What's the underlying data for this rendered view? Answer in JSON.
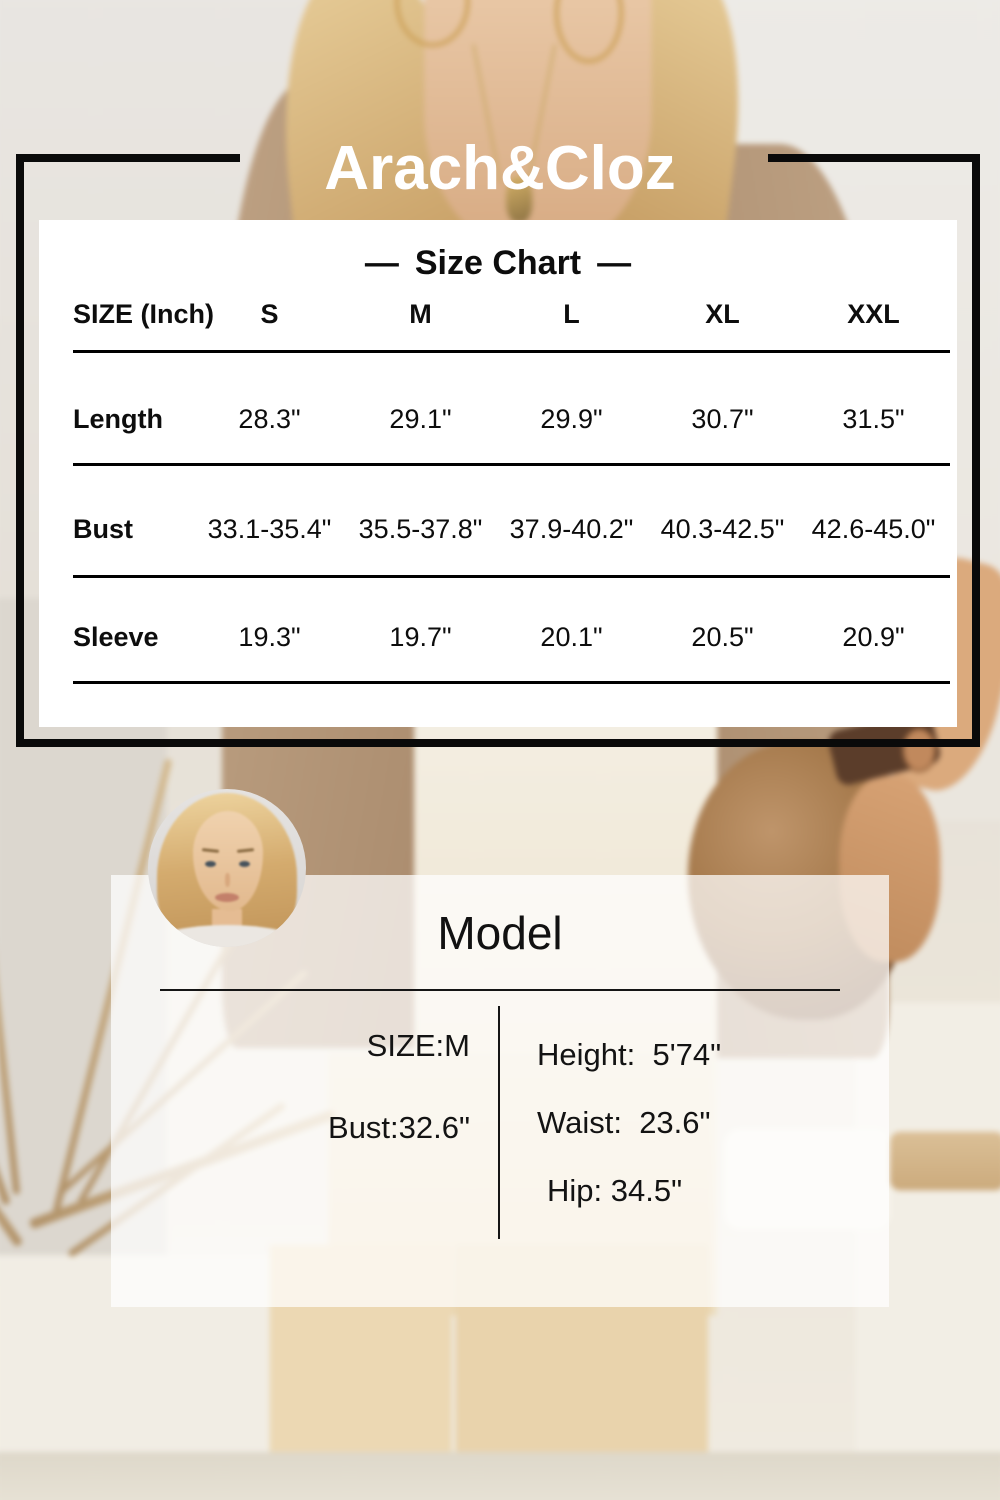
{
  "brand": {
    "name": "Arach&Cloz"
  },
  "size_chart": {
    "title": "Size Chart",
    "dash_left": "—",
    "dash_right": "—",
    "header": {
      "size_label": "SIZE (Inch)",
      "sizes": [
        "S",
        "M",
        "L",
        "XL",
        "XXL"
      ]
    },
    "rows": [
      {
        "label": "Length",
        "values": [
          "28.3\"",
          "29.1\"",
          "29.9\"",
          "30.7\"",
          "31.5\""
        ]
      },
      {
        "label": "Bust",
        "values": [
          "33.1-35.4\"",
          "35.5-37.8\"",
          "37.9-40.2\"",
          "40.3-42.5\"",
          "42.6-45.0\""
        ]
      },
      {
        "label": "Sleeve",
        "values": [
          "19.3\"",
          "19.7\"",
          "20.1\"",
          "20.5\"",
          "20.9\""
        ]
      }
    ]
  },
  "model_info": {
    "title": "Model",
    "size": "SIZE:M",
    "bust": "Bust:32.6\"",
    "height": "Height:  5'74\"",
    "waist": "Waist:  23.6\"",
    "hip": "Hip: 34.5\""
  },
  "colors": {
    "frame_black": "#0a0a0a",
    "card_white": "#ffffff",
    "overlay_white": "rgba(255,255,255,0.72)",
    "text": "#0d0d0d",
    "brand_text": "#ffffff"
  },
  "chart_data": {
    "type": "table",
    "title": "Size Chart",
    "unit": "Inch",
    "columns": [
      "SIZE (Inch)",
      "S",
      "M",
      "L",
      "XL",
      "XXL"
    ],
    "rows": [
      [
        "Length",
        "28.3\"",
        "29.1\"",
        "29.9\"",
        "30.7\"",
        "31.5\""
      ],
      [
        "Bust",
        "33.1-35.4\"",
        "35.5-37.8\"",
        "37.9-40.2\"",
        "40.3-42.5\"",
        "42.6-45.0\""
      ],
      [
        "Sleeve",
        "19.3\"",
        "19.7\"",
        "20.1\"",
        "20.5\"",
        "20.9\""
      ]
    ]
  }
}
